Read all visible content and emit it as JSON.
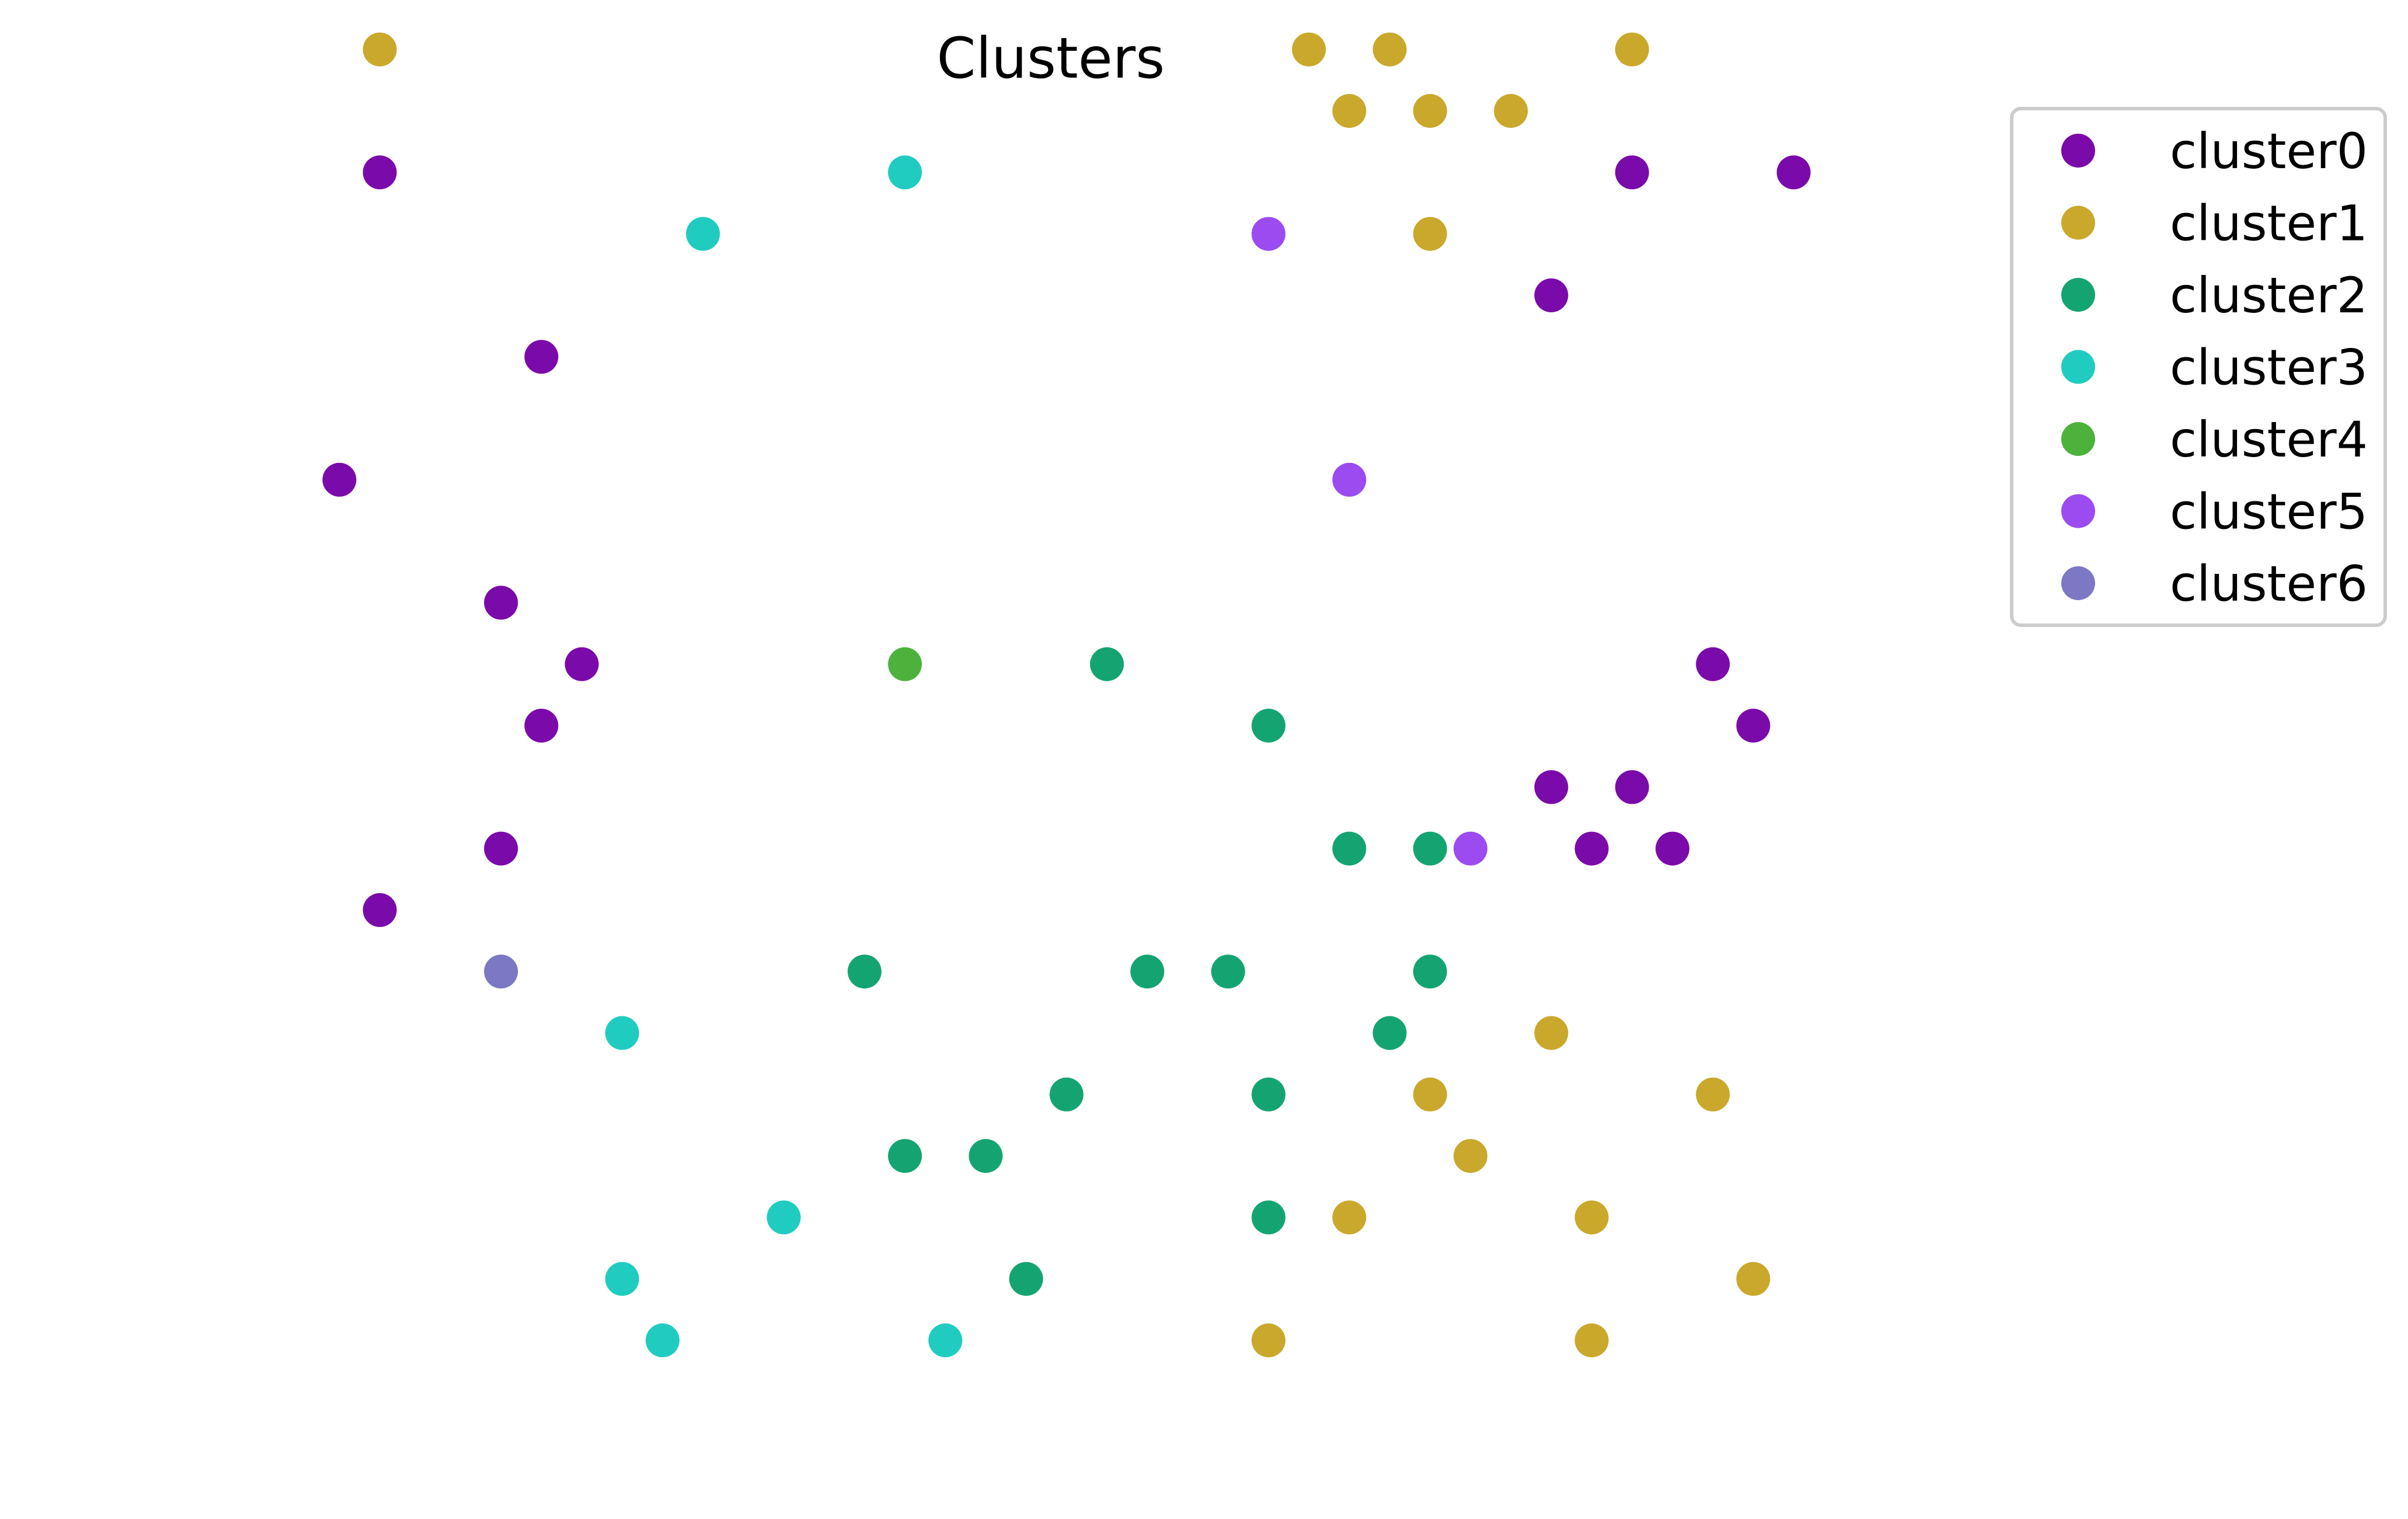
{
  "chart_data": {
    "type": "scatter",
    "title": "Clusters",
    "xlabel": "",
    "ylabel": "",
    "axes_visible": false,
    "grid": false,
    "xlim": [
      -1,
      41
    ],
    "ylim": [
      -1,
      21
    ],
    "legend_placement": "upper right, outside plot",
    "series": [
      {
        "name": "cluster0",
        "color": "#7b0aaa",
        "points": [
          [
            3,
            19
          ],
          [
            7,
            16
          ],
          [
            2,
            14
          ],
          [
            6,
            12
          ],
          [
            8,
            11
          ],
          [
            7,
            10
          ],
          [
            6,
            8
          ],
          [
            3,
            7
          ],
          [
            34,
            19
          ],
          [
            38,
            19
          ],
          [
            32,
            17
          ],
          [
            36,
            11
          ],
          [
            37,
            10
          ],
          [
            32,
            9
          ],
          [
            34,
            9
          ],
          [
            33,
            8
          ],
          [
            35,
            8
          ]
        ]
      },
      {
        "name": "cluster1",
        "color": "#c9a82c",
        "points": [
          [
            3,
            21
          ],
          [
            26,
            21
          ],
          [
            28,
            21
          ],
          [
            34,
            21
          ],
          [
            27,
            20
          ],
          [
            29,
            20
          ],
          [
            31,
            20
          ],
          [
            29,
            18
          ],
          [
            32,
            5
          ],
          [
            29,
            4
          ],
          [
            36,
            4
          ],
          [
            30,
            3
          ],
          [
            27,
            2
          ],
          [
            33,
            2
          ],
          [
            37,
            1
          ],
          [
            25,
            0
          ],
          [
            33,
            0
          ]
        ]
      },
      {
        "name": "cluster2",
        "color": "#14a472",
        "points": [
          [
            21,
            11
          ],
          [
            25,
            10
          ],
          [
            27,
            8
          ],
          [
            29,
            8
          ],
          [
            15,
            6
          ],
          [
            22,
            6
          ],
          [
            24,
            6
          ],
          [
            29,
            6
          ],
          [
            28,
            5
          ],
          [
            20,
            4
          ],
          [
            25,
            4
          ],
          [
            16,
            3
          ],
          [
            18,
            3
          ],
          [
            25,
            2
          ],
          [
            19,
            1
          ]
        ]
      },
      {
        "name": "cluster3",
        "color": "#20ccc0",
        "points": [
          [
            16,
            19
          ],
          [
            11,
            18
          ],
          [
            9,
            5
          ],
          [
            13,
            2
          ],
          [
            9,
            1
          ],
          [
            10,
            0
          ],
          [
            17,
            0
          ]
        ]
      },
      {
        "name": "cluster4",
        "color": "#4cb23c",
        "points": [
          [
            16,
            11
          ]
        ]
      },
      {
        "name": "cluster5",
        "color": "#9b4bf0",
        "points": [
          [
            25,
            18
          ],
          [
            27,
            14
          ],
          [
            30,
            8
          ]
        ]
      },
      {
        "name": "cluster6",
        "color": "#7c78c4",
        "points": [
          [
            6,
            6
          ]
        ]
      }
    ]
  }
}
